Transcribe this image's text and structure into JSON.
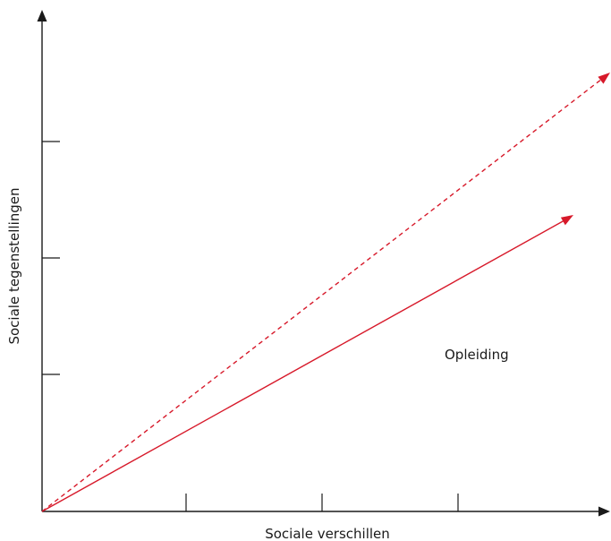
{
  "axes": {
    "x_label": "Sociale verschillen",
    "y_label": "Sociale tegenstellingen"
  },
  "annotation": {
    "label": "Opleiding"
  },
  "colors": {
    "axis": "#1a1a1a",
    "arrow": "#d7192a"
  },
  "arrows": [
    {
      "name": "dashed",
      "style": "dashed"
    },
    {
      "name": "solid",
      "style": "solid"
    }
  ]
}
